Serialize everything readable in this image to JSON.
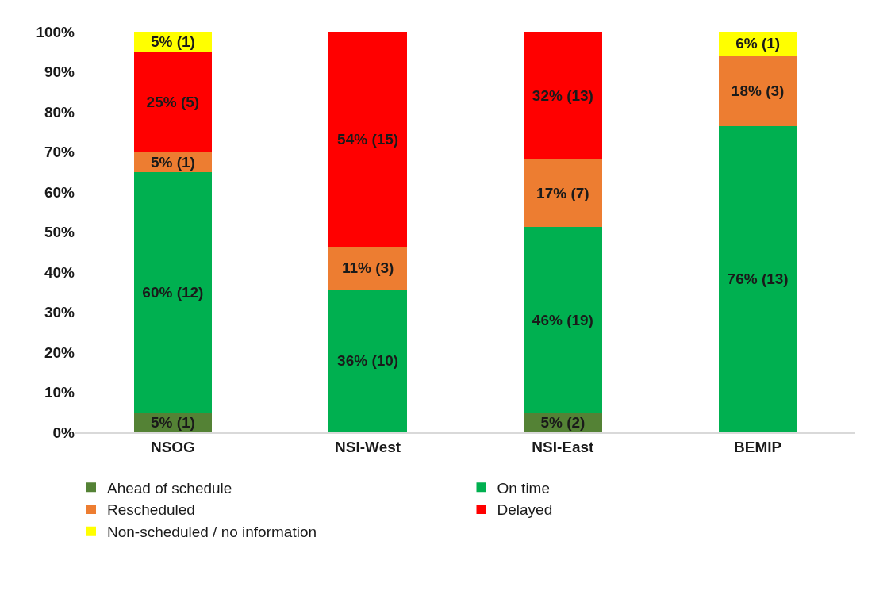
{
  "chart_data": {
    "type": "bar",
    "stacked": true,
    "categories": [
      "NSOG",
      "NSI-West",
      "NSI-East",
      "BEMIP"
    ],
    "series": [
      {
        "name": "Ahead of schedule",
        "color": "#548235",
        "values": [
          5,
          0,
          4.9,
          0
        ],
        "value_labels": [
          "5% (1)",
          null,
          "5% (2)",
          null
        ]
      },
      {
        "name": "On time",
        "color": "#00b050",
        "values": [
          60,
          35.7,
          46.3,
          76.5
        ],
        "value_labels": [
          "60% (12)",
          "36% (10)",
          "46% (19)",
          "76% (13)"
        ]
      },
      {
        "name": "Rescheduled",
        "color": "#ed7d31",
        "values": [
          5,
          10.7,
          17.1,
          17.6
        ],
        "value_labels": [
          "5% (1)",
          "11% (3)",
          "17% (7)",
          "18% (3)"
        ]
      },
      {
        "name": "Delayed",
        "color": "#ff0000",
        "values": [
          25,
          53.6,
          31.7,
          0
        ],
        "value_labels": [
          "25% (5)",
          "54% (15)",
          "32% (13)",
          null
        ]
      },
      {
        "name": "Non-scheduled / no information",
        "color": "#ffff00",
        "values": [
          5,
          0,
          0,
          5.9
        ],
        "value_labels": [
          "5% (1)",
          null,
          null,
          "6% (1)"
        ]
      }
    ],
    "ylim": [
      0,
      100
    ],
    "yticks": [
      {
        "value": 0,
        "label": "0%"
      },
      {
        "value": 10,
        "label": "10%"
      },
      {
        "value": 20,
        "label": "20%"
      },
      {
        "value": 30,
        "label": "30%"
      },
      {
        "value": 40,
        "label": "40%"
      },
      {
        "value": 50,
        "label": "50%"
      },
      {
        "value": 60,
        "label": "60%"
      },
      {
        "value": 70,
        "label": "70%"
      },
      {
        "value": 80,
        "label": "80%"
      },
      {
        "value": 90,
        "label": "90%"
      },
      {
        "value": 100,
        "label": "100%"
      }
    ],
    "grid": false,
    "legend": "bottom"
  }
}
